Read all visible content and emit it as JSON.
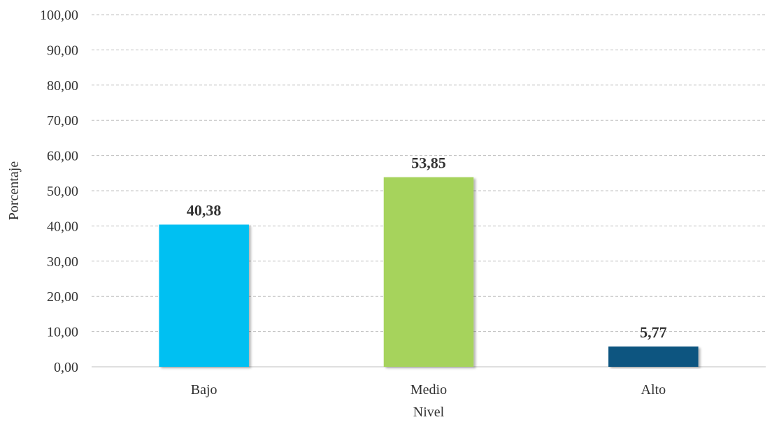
{
  "chart_data": {
    "type": "bar",
    "categories": [
      "Bajo",
      "Medio",
      "Alto"
    ],
    "values": [
      40.38,
      53.85,
      5.77
    ],
    "value_labels": [
      "40,38",
      "53,85",
      "5,77"
    ],
    "colors": [
      "#00c0f2",
      "#a6d35b",
      "#0e5480"
    ],
    "xlabel": "Nivel",
    "ylabel": "Porcentaje",
    "ylim": [
      0,
      100
    ],
    "yticks": [
      0,
      10,
      20,
      30,
      40,
      50,
      60,
      70,
      80,
      90,
      100
    ],
    "ytick_labels": [
      "0,00",
      "10,00",
      "20,00",
      "30,00",
      "40,00",
      "50,00",
      "60,00",
      "70,00",
      "80,00",
      "90,00",
      "100,00"
    ],
    "grid": true,
    "legend": "none"
  }
}
